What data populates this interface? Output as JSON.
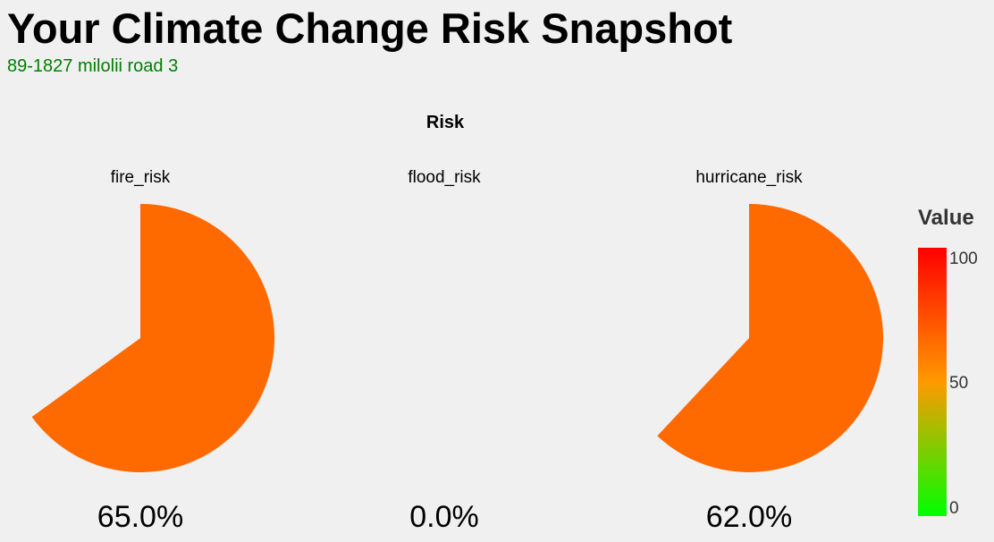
{
  "page": {
    "title": "Your Climate Change Risk Snapshot",
    "address": "89-1827 milolii road 3"
  },
  "chart_data": {
    "type": "pie",
    "title": "Risk",
    "value_max": 100,
    "panels": [
      {
        "name": "fire_risk",
        "value": 65.0,
        "label": "65.0%"
      },
      {
        "name": "flood_risk",
        "value": 0.0,
        "label": "0.0%"
      },
      {
        "name": "hurricane_risk",
        "value": 62.0,
        "label": "62.0%"
      }
    ],
    "colorbar": {
      "title": "Value",
      "ticks": [
        "100",
        "50",
        "0"
      ],
      "tick_values": [
        100,
        50,
        0
      ],
      "range": [
        0,
        100
      ],
      "color_low": "#00ff00",
      "color_high": "#ff0000"
    },
    "fill_color": "#ff6a00"
  }
}
